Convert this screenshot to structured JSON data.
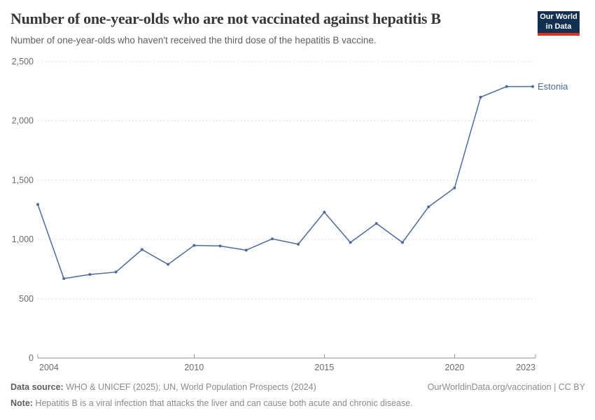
{
  "header": {
    "logo": {
      "line1": "Our World",
      "line2": "in Data",
      "bg_color": "#12304f",
      "accent_color": "#dc3224"
    }
  },
  "chart_data": {
    "type": "line",
    "title": "Number of one-year-olds who are not vaccinated against hepatitis B",
    "subtitle": "Number of one-year-olds who haven't received the third dose of the hepatitis B vaccine.",
    "x": [
      2004,
      2005,
      2006,
      2007,
      2008,
      2009,
      2010,
      2011,
      2012,
      2013,
      2014,
      2015,
      2016,
      2017,
      2018,
      2019,
      2020,
      2021,
      2022,
      2023
    ],
    "series": [
      {
        "name": "Estonia",
        "color": "#4c6a9c",
        "values": [
          1295,
          670,
          705,
          725,
          915,
          790,
          950,
          945,
          910,
          1005,
          960,
          1230,
          975,
          1135,
          975,
          1275,
          1435,
          2200,
          2290,
          2290
        ]
      }
    ],
    "xlim": [
      2004,
      2023
    ],
    "ylim": [
      0,
      2500
    ],
    "xticks": [
      {
        "value": 2004,
        "label": "2004",
        "align": "start"
      },
      {
        "value": 2010,
        "label": "2010",
        "align": "middle"
      },
      {
        "value": 2015,
        "label": "2015",
        "align": "middle"
      },
      {
        "value": 2020,
        "label": "2020",
        "align": "middle"
      },
      {
        "value": 2023,
        "label": "2023",
        "align": "end"
      }
    ],
    "yticks": [
      {
        "value": 0,
        "label": "0"
      },
      {
        "value": 500,
        "label": "500"
      },
      {
        "value": 1000,
        "label": "1,000"
      },
      {
        "value": 1500,
        "label": "1,500"
      },
      {
        "value": 2000,
        "label": "2,000"
      },
      {
        "value": 2500,
        "label": "2,500"
      }
    ],
    "grid": "horizontal-dashed",
    "legend": "end-of-line-label",
    "colors": {
      "gridline": "#dcdcdc",
      "axis": "#999999",
      "tick_label": "#6b6b6b"
    }
  },
  "footer": {
    "datasource_label": "Data source:",
    "datasource_text": " WHO & UNICEF (2025); UN, World Population Prospects (2024)",
    "citation": "OurWorldinData.org/vaccination | CC BY",
    "note_label": "Note:",
    "note_text": " Hepatitis B is a viral infection that attacks the liver and can cause both acute and chronic disease."
  }
}
